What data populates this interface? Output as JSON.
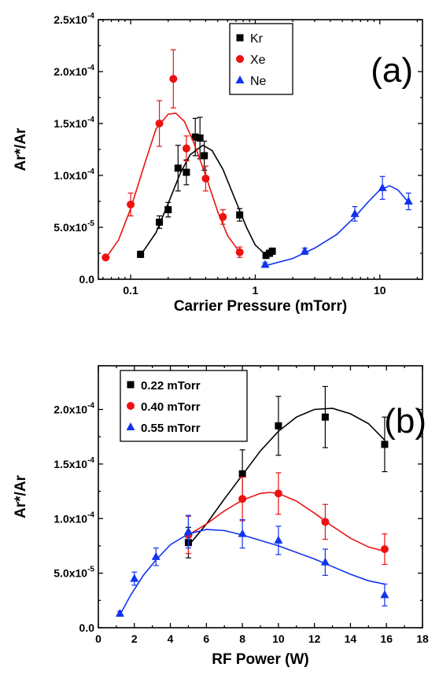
{
  "chart_data": [
    {
      "type": "scatter",
      "panel_label": "(a)",
      "xlabel": "Carrier Pressure (mTorr)",
      "ylabel": "Ar*/Ar",
      "xscale": "log",
      "xlim": [
        0.055,
        22
      ],
      "ylim": [
        0,
        0.00025
      ],
      "xticks": [
        {
          "v": 0.1,
          "label": "0.1"
        },
        {
          "v": 1,
          "label": "1"
        },
        {
          "v": 10,
          "label": "10"
        }
      ],
      "yticks": [
        {
          "v": 0,
          "m": "0.0",
          "e": ""
        },
        {
          "v": 5e-05,
          "m": "5.0x10",
          "e": "-5"
        },
        {
          "v": 0.0001,
          "m": "1.0x10",
          "e": "-4"
        },
        {
          "v": 0.00015,
          "m": "1.5x10",
          "e": "-4"
        },
        {
          "v": 0.0002,
          "m": "2.0x10",
          "e": "-4"
        },
        {
          "v": 0.00025,
          "m": "2.5x10",
          "e": "-4"
        }
      ],
      "legend_position": "top-middle",
      "series": [
        {
          "name": "Kr",
          "color": "#000000",
          "marker": "square",
          "points": [
            [
              0.12,
              2.4e-05,
              3e-06
            ],
            [
              0.17,
              5.5e-05,
              6e-06
            ],
            [
              0.2,
              6.7e-05,
              7e-06
            ],
            [
              0.24,
              0.000107,
              2.2e-05
            ],
            [
              0.28,
              0.000103,
              1.2e-05
            ],
            [
              0.33,
              0.000137,
              1.8e-05
            ],
            [
              0.36,
              0.000136,
              2e-05
            ],
            [
              0.39,
              0.000119,
              1.4e-05
            ],
            [
              0.75,
              6.2e-05,
              6e-06
            ],
            [
              1.22,
              2.3e-05,
              3e-06
            ],
            [
              1.3,
              2.5e-05,
              3e-06
            ],
            [
              1.37,
              2.7e-05,
              3e-06
            ]
          ],
          "fit": [
            [
              0.12,
              2.3e-05
            ],
            [
              0.16,
              4.5e-05
            ],
            [
              0.2,
              7.3e-05
            ],
            [
              0.25,
              0.000102
            ],
            [
              0.3,
              0.00012
            ],
            [
              0.38,
              0.000129
            ],
            [
              0.45,
              0.000124
            ],
            [
              0.55,
              0.000106
            ],
            [
              0.7,
              7.5e-05
            ],
            [
              0.85,
              5e-05
            ],
            [
              1.0,
              3.3e-05
            ],
            [
              1.2,
              2.4e-05
            ],
            [
              1.37,
              2.3e-05
            ]
          ]
        },
        {
          "name": "Xe",
          "color": "#ee1111",
          "marker": "circle",
          "points": [
            [
              0.063,
              2.1e-05,
              2e-06
            ],
            [
              0.1,
              7.2e-05,
              1.1e-05
            ],
            [
              0.17,
              0.00015,
              2.2e-05
            ],
            [
              0.22,
              0.000193,
              2.8e-05
            ],
            [
              0.28,
              0.000126,
              1.2e-05
            ],
            [
              0.4,
              9.7e-05,
              1.2e-05
            ],
            [
              0.55,
              6e-05,
              7e-06
            ],
            [
              0.75,
              2.6e-05,
              5e-06
            ]
          ],
          "fit": [
            [
              0.063,
              2e-05
            ],
            [
              0.08,
              3.8e-05
            ],
            [
              0.1,
              6.8e-05
            ],
            [
              0.13,
              0.000112
            ],
            [
              0.16,
              0.000145
            ],
            [
              0.2,
              0.000159
            ],
            [
              0.23,
              0.00016
            ],
            [
              0.27,
              0.000152
            ],
            [
              0.32,
              0.000132
            ],
            [
              0.4,
              0.0001
            ],
            [
              0.5,
              6.5e-05
            ],
            [
              0.6,
              4.2e-05
            ],
            [
              0.75,
              2.6e-05
            ]
          ]
        },
        {
          "name": "Ne",
          "color": "#1133ee",
          "marker": "triangle",
          "points": [
            [
              1.2,
              1.4e-05,
              2e-06
            ],
            [
              2.5,
              2.7e-05,
              3e-06
            ],
            [
              6.3,
              6.3e-05,
              7e-06
            ],
            [
              10.5,
              8.8e-05,
              1.1e-05
            ],
            [
              17,
              7.5e-05,
              8e-06
            ]
          ],
          "fit": [
            [
              1.2,
              1.3e-05
            ],
            [
              2,
              2e-05
            ],
            [
              3,
              3e-05
            ],
            [
              4.5,
              4.3e-05
            ],
            [
              6.3,
              6e-05
            ],
            [
              8,
              7.4e-05
            ],
            [
              10,
              8.6e-05
            ],
            [
              12,
              9e-05
            ],
            [
              14,
              8.6e-05
            ],
            [
              17,
              7.4e-05
            ]
          ]
        }
      ]
    },
    {
      "type": "scatter",
      "panel_label": "(b)",
      "xlabel": "RF Power (W)",
      "ylabel": "Ar*/Ar",
      "xscale": "linear",
      "xlim": [
        0,
        18
      ],
      "ylim": [
        0,
        0.00024
      ],
      "xticks": [
        {
          "v": 0,
          "label": "0"
        },
        {
          "v": 2,
          "label": "2"
        },
        {
          "v": 4,
          "label": "4"
        },
        {
          "v": 6,
          "label": "6"
        },
        {
          "v": 8,
          "label": "8"
        },
        {
          "v": 10,
          "label": "10"
        },
        {
          "v": 12,
          "label": "12"
        },
        {
          "v": 14,
          "label": "14"
        },
        {
          "v": 16,
          "label": "16"
        },
        {
          "v": 18,
          "label": "18"
        }
      ],
      "yticks": [
        {
          "v": 0,
          "m": "0.0",
          "e": ""
        },
        {
          "v": 5e-05,
          "m": "5.0x10",
          "e": "-5"
        },
        {
          "v": 0.0001,
          "m": "1.0x10",
          "e": "-4"
        },
        {
          "v": 0.00015,
          "m": "1.5x10",
          "e": "-4"
        },
        {
          "v": 0.0002,
          "m": "2.0x10",
          "e": "-4"
        }
      ],
      "legend_position": "top-left",
      "series": [
        {
          "name": "0.22 mTorr",
          "color": "#000000",
          "marker": "square",
          "points": [
            [
              5,
              7.8e-05,
              1.4e-05
            ],
            [
              8,
              0.000141,
              2.2e-05
            ],
            [
              10,
              0.000185,
              2.7e-05
            ],
            [
              12.6,
              0.000193,
              2.8e-05
            ],
            [
              15.9,
              0.000168,
              2.5e-05
            ]
          ],
          "fit": [
            [
              5,
              7.5e-05
            ],
            [
              6,
              9.5e-05
            ],
            [
              7,
              0.000118
            ],
            [
              8,
              0.00014
            ],
            [
              9,
              0.000162
            ],
            [
              10,
              0.00018
            ],
            [
              11,
              0.000193
            ],
            [
              12,
              0.0002
            ],
            [
              13,
              0.000201
            ],
            [
              14,
              0.000196
            ],
            [
              15,
              0.000187
            ],
            [
              15.9,
              0.000172
            ]
          ]
        },
        {
          "name": "0.40 mTorr",
          "color": "#ee1111",
          "marker": "circle",
          "points": [
            [
              5,
              8.5e-05,
              1.7e-05
            ],
            [
              8,
              0.000118,
              2e-05
            ],
            [
              10,
              0.000123,
              1.9e-05
            ],
            [
              12.6,
              9.7e-05,
              1.6e-05
            ],
            [
              15.9,
              7.2e-05,
              1.4e-05
            ]
          ],
          "fit": [
            [
              5,
              8.5e-05
            ],
            [
              6,
              9.5e-05
            ],
            [
              7,
              0.000107
            ],
            [
              8,
              0.000117
            ],
            [
              9,
              0.000123
            ],
            [
              9.5,
              0.000124
            ],
            [
              10,
              0.000123
            ],
            [
              11,
              0.000116
            ],
            [
              12,
              0.000105
            ],
            [
              13,
              9.3e-05
            ],
            [
              14,
              8.2e-05
            ],
            [
              15,
              7.4e-05
            ],
            [
              15.9,
              7e-05
            ]
          ]
        },
        {
          "name": "0.55 mTorr",
          "color": "#1133ee",
          "marker": "triangle",
          "points": [
            [
              1.2,
              1.3e-05,
              2e-06
            ],
            [
              2,
              4.5e-05,
              6e-06
            ],
            [
              3.2,
              6.5e-05,
              8e-06
            ],
            [
              5,
              8.8e-05,
              1.5e-05
            ],
            [
              8,
              8.6e-05,
              1.3e-05
            ],
            [
              10,
              8e-05,
              1.3e-05
            ],
            [
              12.6,
              6e-05,
              1.2e-05
            ],
            [
              15.9,
              3e-05,
              1e-05
            ]
          ],
          "fit": [
            [
              1.2,
              1.2e-05
            ],
            [
              1.8,
              3e-05
            ],
            [
              2.5,
              4.8e-05
            ],
            [
              3.2,
              6.2e-05
            ],
            [
              4,
              7.6e-05
            ],
            [
              5,
              8.6e-05
            ],
            [
              6,
              9e-05
            ],
            [
              7,
              8.9e-05
            ],
            [
              8,
              8.5e-05
            ],
            [
              9,
              8e-05
            ],
            [
              10,
              7.5e-05
            ],
            [
              11,
              6.9e-05
            ],
            [
              12,
              6.3e-05
            ],
            [
              13,
              5.6e-05
            ],
            [
              14,
              4.9e-05
            ],
            [
              15,
              4.3e-05
            ],
            [
              15.9,
              4e-05
            ]
          ]
        }
      ]
    }
  ]
}
